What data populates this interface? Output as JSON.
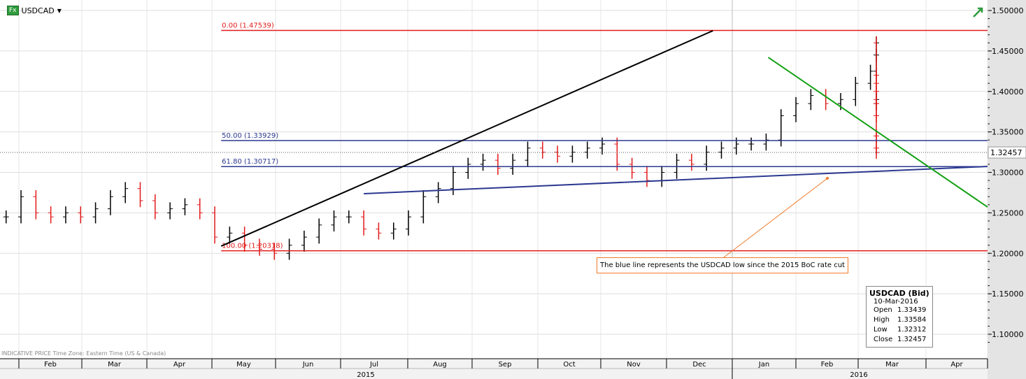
{
  "header": {
    "symbol": "USDCAD",
    "icon": "fx-icon"
  },
  "footer": {
    "note": "INDICATIVE PRICE   Time Zone: Eastern Time (US & Canada)"
  },
  "annotation": "The blue line represents the USDCAD low since the 2015 BoC rate cut",
  "info": {
    "title": "USDCAD (Bid)",
    "date": "10-Mar-2016",
    "rows": [
      [
        "Open",
        "1.33439"
      ],
      [
        "High",
        "1.33584"
      ],
      [
        "Low",
        "1.32312"
      ],
      [
        "Close",
        "1.32457"
      ]
    ]
  },
  "chart_data": {
    "type": "ohlc",
    "ylim": [
      1.075,
      1.51
    ],
    "yticks": [
      "1.50000",
      "1.45000",
      "1.40000",
      "1.35000",
      "1.30000",
      "1.25000",
      "1.20000",
      "1.15000",
      "1.10000"
    ],
    "x_months": [
      "Feb",
      "Mar",
      "Apr",
      "May",
      "Jun",
      "Jul",
      "Aug",
      "Sep",
      "Oct",
      "Nov",
      "Dec",
      "Jan",
      "Feb",
      "Mar",
      "Apr"
    ],
    "x_years": [
      "2015",
      "2016"
    ],
    "last_price": "1.32457",
    "first_week": "2015-01-26",
    "weekly_close": [
      1.245,
      1.27,
      1.25,
      1.245,
      1.25,
      1.245,
      1.255,
      1.27,
      1.28,
      1.265,
      1.25,
      1.255,
      1.26,
      1.25,
      1.22,
      1.225,
      1.21,
      1.205,
      1.2,
      1.21,
      1.22,
      1.235,
      1.245,
      1.245,
      1.23,
      1.225,
      1.23,
      1.245,
      1.27,
      1.28,
      1.3,
      1.31,
      1.315,
      1.305,
      1.315,
      1.33,
      1.325,
      1.32,
      1.325,
      1.33,
      1.335,
      1.31,
      1.3,
      1.29,
      1.3,
      1.315,
      1.31,
      1.325,
      1.33,
      1.335,
      1.335,
      1.34,
      1.37,
      1.385,
      1.395,
      1.385,
      1.39,
      1.41,
      1.425,
      1.445,
      1.46,
      1.42,
      1.41,
      1.4,
      1.385,
      1.39,
      1.385,
      1.37,
      1.345,
      1.33,
      1.3246
    ],
    "fib_levels": [
      {
        "label": "0.00 (1.47539)",
        "price": 1.47539,
        "color": "#e31a1a"
      },
      {
        "label": "50.00 (1.33929)",
        "price": 1.33929,
        "color": "#2b3990"
      },
      {
        "label": "61.80 (1.30717)",
        "price": 1.30717,
        "color": "#2b3990"
      },
      {
        "label": "100.00 (1.20318)",
        "price": 1.20318,
        "color": "#e31a1a"
      }
    ],
    "fib_start": "2015-05-07",
    "trendlines": [
      {
        "color": "#000000",
        "from": [
          "2015-05-07",
          1.2089
        ],
        "to": [
          "2015-12-24",
          1.475
        ]
      },
      {
        "color": "#2b3990",
        "from": [
          "2015-07-13",
          1.2737
        ],
        "to": [
          "2016-05-01",
          1.3073
        ]
      },
      {
        "color": "#14a014",
        "from": [
          "2016-01-19",
          1.4421
        ],
        "to": [
          "2016-05-01",
          1.2572
        ]
      }
    ],
    "up_color": "#000000",
    "down_color": "#e31a1a"
  }
}
